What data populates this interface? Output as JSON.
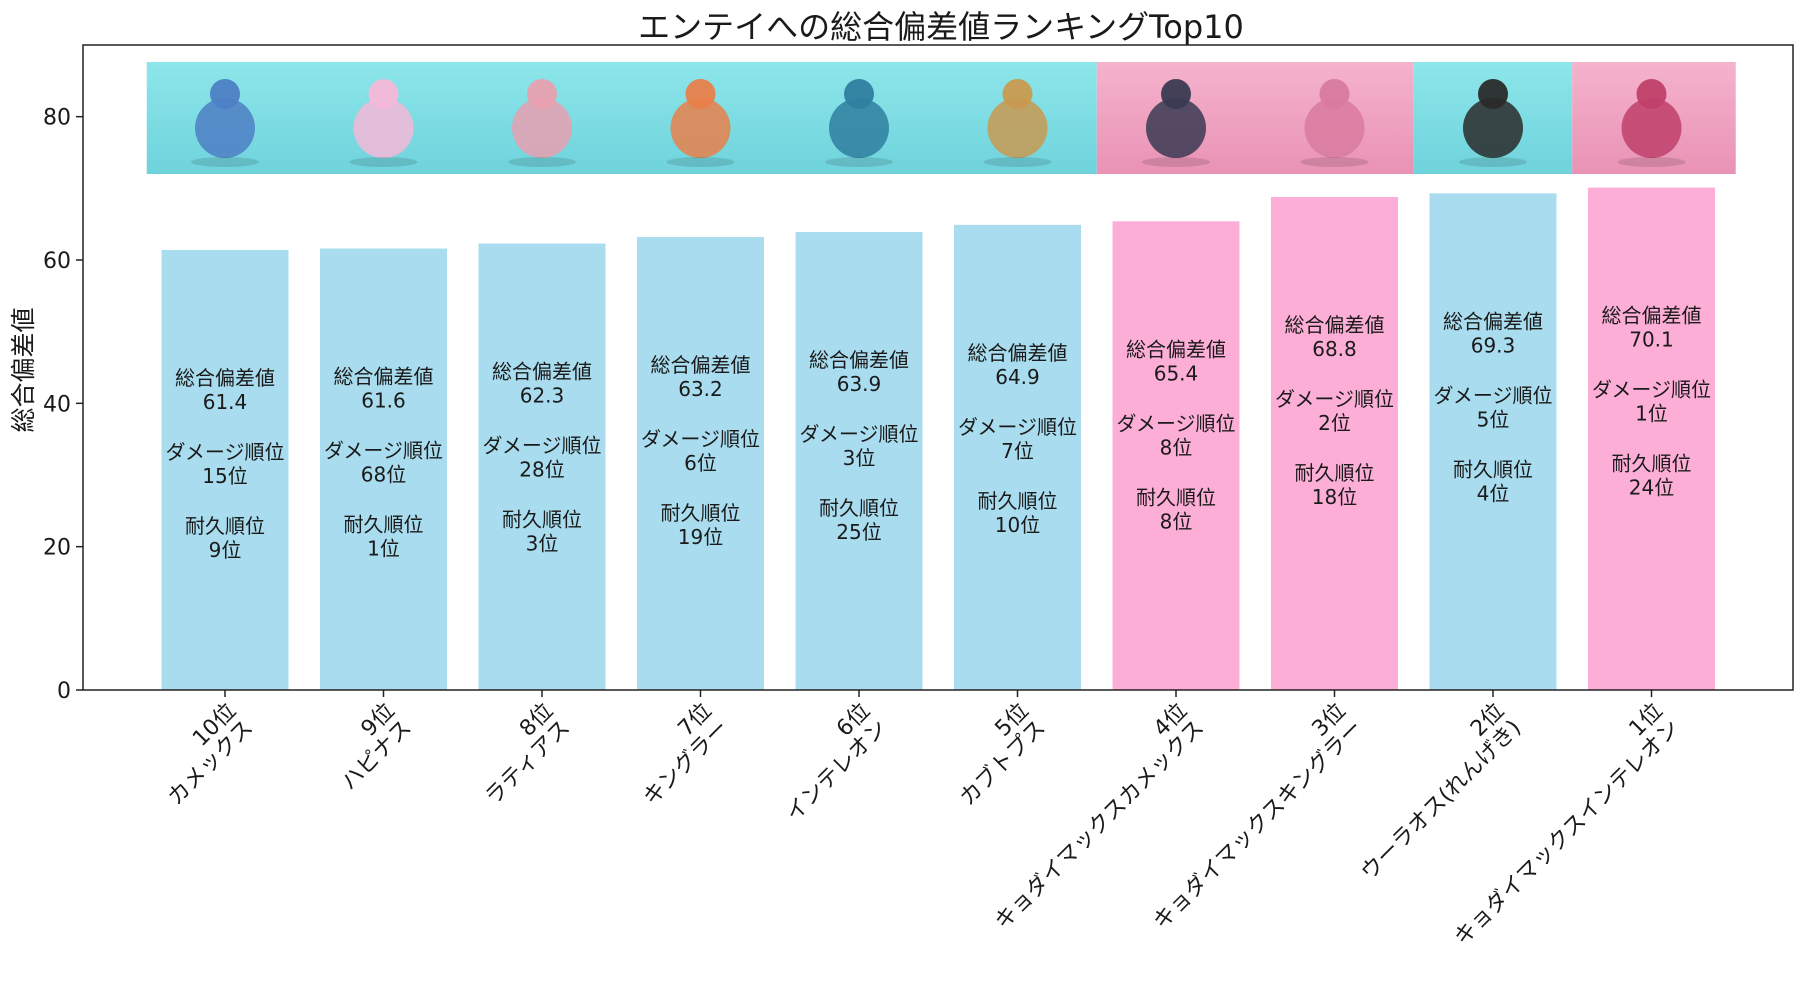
{
  "chart_data": {
    "type": "bar",
    "title": "エンテイへの総合偏差値ランキングTop10",
    "xlabel": "",
    "ylabel": "総合偏差値",
    "ylim": [
      0,
      90
    ],
    "yticks": [
      0,
      20,
      40,
      60,
      80
    ],
    "grid": false,
    "legend": "none",
    "rank_labels": [
      "10位",
      "9位",
      "8位",
      "7位",
      "6位",
      "5位",
      "4位",
      "3位",
      "2位",
      "1位"
    ],
    "categories": [
      "カメックス",
      "ハピナス",
      "ラティアス",
      "キングラー",
      "インテレオン",
      "カブトプス",
      "キョダイマックスカメックス",
      "キョダイマックスキングラー",
      "ウーラオス(れんげき)",
      "キョダイマックスインテレオン"
    ],
    "values": [
      61.4,
      61.6,
      62.3,
      63.2,
      63.9,
      64.9,
      65.4,
      68.8,
      69.3,
      70.1
    ],
    "bar_colors": [
      "#a8dcee",
      "#a8dcee",
      "#a8dcee",
      "#a8dcee",
      "#a8dcee",
      "#a8dcee",
      "#fdaed6",
      "#fdaed6",
      "#a8dcee",
      "#fdaed6"
    ],
    "annotations": {
      "score_label": "総合偏差値",
      "damage_label": "ダメージ順位",
      "durability_label": "耐久順位",
      "damage_rank": [
        "15位",
        "68位",
        "28位",
        "6位",
        "3位",
        "7位",
        "8位",
        "2位",
        "5位",
        "1位"
      ],
      "durability_rank": [
        "9位",
        "1位",
        "3位",
        "19位",
        "25位",
        "10位",
        "8位",
        "18位",
        "4位",
        "24位"
      ]
    },
    "image_strip": {
      "panel_colors": [
        "#7fe0e6",
        "#f3a6c4",
        "#7fe0e6",
        "#f3a6c4"
      ],
      "sprites": [
        "blastoise-sprite",
        "blissey-sprite",
        "latias-sprite",
        "kingler-sprite",
        "inteleon-sprite",
        "kabutops-sprite",
        "gmax-blastoise-sprite",
        "gmax-kingler-sprite",
        "urshifu-rapid-sprite",
        "gmax-inteleon-sprite"
      ]
    }
  }
}
